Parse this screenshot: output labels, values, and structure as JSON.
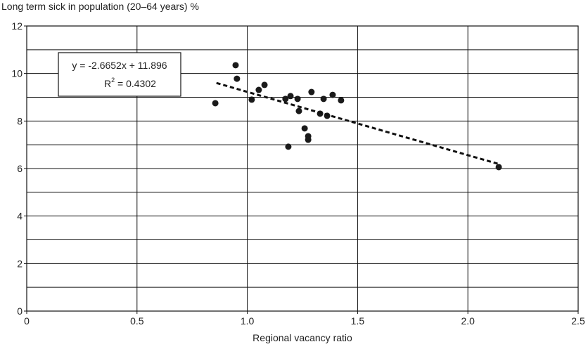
{
  "chart_data": {
    "type": "scatter",
    "y_label": "Long term sick in population (20–64 years) %",
    "x_label": "Regional vacancy ratio",
    "x": [
      0.855,
      0.947,
      0.953,
      1.02,
      1.052,
      1.078,
      1.173,
      1.186,
      1.196,
      1.228,
      1.234,
      1.26,
      1.276,
      1.276,
      1.291,
      1.33,
      1.346,
      1.362,
      1.387,
      1.425,
      2.14
    ],
    "values": [
      8.75,
      10.35,
      9.78,
      8.9,
      9.31,
      9.52,
      8.93,
      6.92,
      9.05,
      8.93,
      8.42,
      7.69,
      7.36,
      7.21,
      9.22,
      8.31,
      8.93,
      8.22,
      9.1,
      8.87,
      6.06
    ],
    "color": "#1a1a1a",
    "xlim": [
      0,
      2.5
    ],
    "xticks": [
      0,
      0.5,
      {
        "value": 1,
        "label": "1.0"
      },
      1.5,
      {
        "value": 2,
        "label": "2.0"
      },
      2.5
    ],
    "ylim": [
      0,
      12
    ],
    "yticks": [
      0,
      2,
      4,
      6,
      8,
      10,
      12
    ],
    "y_minor_grid": [
      1,
      3,
      5,
      7,
      9,
      11
    ],
    "grid": true,
    "trendline": {
      "x": [
        0.86,
        2.14
      ],
      "y": [
        9.6,
        6.19
      ],
      "equation": "y = -2.6652x + 11.896",
      "r2": {
        "base": "R",
        "sup": "2",
        "rest": " = 0.4302"
      }
    }
  }
}
